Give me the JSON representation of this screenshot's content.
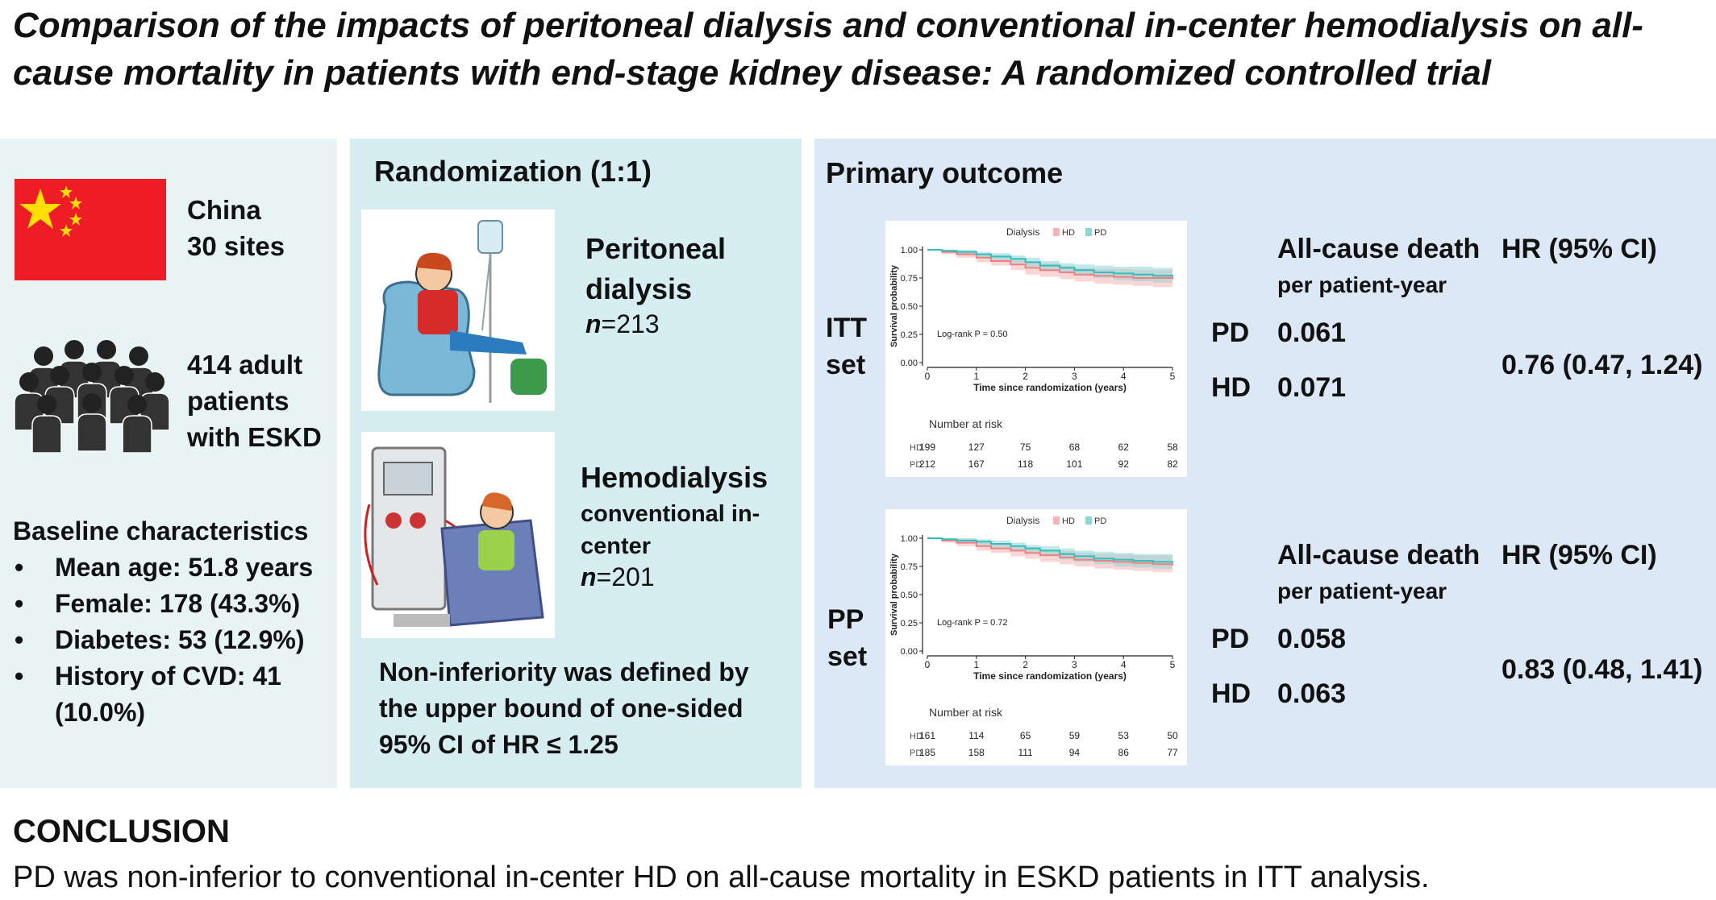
{
  "title": "Comparison of the impacts of peritoneal dialysis and conventional in-center hemodialysis on all-cause mortality in patients with end-stage kidney disease: A randomized controlled trial",
  "population": {
    "flag_icon": "china-flag-icon",
    "country": "China",
    "sites": "30 sites",
    "patients_line1": "414 adult",
    "patients_line2": "patients",
    "patients_line3": "with ESKD",
    "baseline_heading": "Baseline characteristics",
    "baseline_items": [
      "Mean age: 51.8 years",
      "Female: 178 (43.3%)",
      "Diabetes: 53 (12.9%)",
      "History of CVD: 41 (10.0%)"
    ]
  },
  "randomization": {
    "heading": "Randomization (1:1)",
    "pd_line1": "Peritoneal",
    "pd_line2": "dialysis",
    "pd_n_label": "n",
    "pd_n_value": "=213",
    "hd_line1": "Hemodialysis",
    "hd_line2": "conventional in-",
    "hd_line3": "center",
    "hd_n_label": "n",
    "hd_n_value": "=201",
    "noninferiority": "Non-inferiority was defined by the upper bound of one-sided 95% CI of HR ≤ 1.25"
  },
  "primary_outcome": {
    "heading": "Primary outcome",
    "col_death_line1": "All-cause death",
    "col_death_line2": "per patient-year",
    "col_hr": "HR (95% CI)",
    "itt": {
      "label_line1": "ITT",
      "label_line2": "set",
      "pd_label": "PD",
      "pd_rate": "0.061",
      "hd_label": "HD",
      "hd_rate": "0.071",
      "hr": "0.76 (0.47, 1.24)"
    },
    "pp": {
      "label_line1": "PP",
      "label_line2": "set",
      "pd_label": "PD",
      "pd_rate": "0.058",
      "hd_label": "HD",
      "hd_rate": "0.063",
      "hr": "0.83 (0.48, 1.41)"
    }
  },
  "chart_data": [
    {
      "type": "line",
      "title": "",
      "legend_title": "Dialysis",
      "legend_position": "top",
      "xlabel": "Time since randomization (years)",
      "ylabel": "Survival probability",
      "xlim": [
        0,
        5
      ],
      "ylim": [
        0,
        1
      ],
      "x_ticks": [
        "0",
        "1",
        "2",
        "3",
        "4",
        "5"
      ],
      "y_ticks": [
        "0.00",
        "0.25",
        "0.50",
        "0.75",
        "1.00"
      ],
      "annotation": "Log-rank P = 0.50",
      "risk_table_title": "Number at risk",
      "series": [
        {
          "name": "HD",
          "color": "#f08080",
          "band_color": "#f8b4b4",
          "x": [
            0,
            0.3,
            0.6,
            1.0,
            1.3,
            1.7,
            2.0,
            2.3,
            2.7,
            3.0,
            3.4,
            3.8,
            4.2,
            4.6,
            5.0
          ],
          "values": [
            1.0,
            0.98,
            0.96,
            0.93,
            0.9,
            0.87,
            0.84,
            0.82,
            0.8,
            0.78,
            0.77,
            0.76,
            0.75,
            0.75,
            0.74
          ],
          "upper": [
            1.0,
            1.0,
            0.99,
            0.96,
            0.94,
            0.92,
            0.89,
            0.88,
            0.86,
            0.84,
            0.83,
            0.83,
            0.82,
            0.82,
            0.82
          ],
          "lower": [
            1.0,
            0.96,
            0.93,
            0.89,
            0.86,
            0.82,
            0.78,
            0.76,
            0.74,
            0.72,
            0.7,
            0.69,
            0.68,
            0.67,
            0.66
          ],
          "at_risk": [
            "199",
            "127",
            "75",
            "68",
            "62",
            "58"
          ]
        },
        {
          "name": "PD",
          "color": "#33bdbd",
          "band_color": "#8fd6d6",
          "x": [
            0,
            0.3,
            0.6,
            1.0,
            1.3,
            1.7,
            2.0,
            2.3,
            2.7,
            3.0,
            3.4,
            3.8,
            4.2,
            4.6,
            5.0
          ],
          "values": [
            1.0,
            0.99,
            0.98,
            0.96,
            0.94,
            0.92,
            0.89,
            0.86,
            0.84,
            0.82,
            0.8,
            0.79,
            0.78,
            0.77,
            0.76
          ],
          "upper": [
            1.0,
            1.0,
            1.0,
            0.98,
            0.97,
            0.95,
            0.93,
            0.9,
            0.88,
            0.87,
            0.86,
            0.85,
            0.85,
            0.84,
            0.84
          ],
          "lower": [
            1.0,
            0.98,
            0.96,
            0.93,
            0.91,
            0.88,
            0.85,
            0.81,
            0.79,
            0.77,
            0.75,
            0.73,
            0.72,
            0.71,
            0.69
          ],
          "at_risk": [
            "212",
            "167",
            "118",
            "101",
            "92",
            "82"
          ]
        }
      ]
    },
    {
      "type": "line",
      "title": "",
      "legend_title": "Dialysis",
      "legend_position": "top",
      "xlabel": "Time since randomization (years)",
      "ylabel": "Survival probability",
      "xlim": [
        0,
        5
      ],
      "ylim": [
        0,
        1
      ],
      "x_ticks": [
        "0",
        "1",
        "2",
        "3",
        "4",
        "5"
      ],
      "y_ticks": [
        "0.00",
        "0.25",
        "0.50",
        "0.75",
        "1.00"
      ],
      "annotation": "Log-rank P = 0.72",
      "risk_table_title": "Number at risk",
      "series": [
        {
          "name": "HD",
          "color": "#f08080",
          "band_color": "#f8b4b4",
          "x": [
            0,
            0.3,
            0.6,
            1.0,
            1.3,
            1.7,
            2.0,
            2.3,
            2.7,
            3.0,
            3.4,
            3.8,
            4.2,
            4.6,
            5.0
          ],
          "values": [
            1.0,
            0.98,
            0.96,
            0.93,
            0.91,
            0.89,
            0.87,
            0.85,
            0.83,
            0.81,
            0.8,
            0.79,
            0.78,
            0.77,
            0.76
          ],
          "upper": [
            1.0,
            1.0,
            0.99,
            0.97,
            0.95,
            0.93,
            0.92,
            0.9,
            0.89,
            0.87,
            0.86,
            0.86,
            0.85,
            0.85,
            0.84
          ],
          "lower": [
            1.0,
            0.96,
            0.93,
            0.89,
            0.87,
            0.84,
            0.82,
            0.79,
            0.77,
            0.75,
            0.73,
            0.72,
            0.71,
            0.7,
            0.68
          ],
          "at_risk": [
            "161",
            "114",
            "65",
            "59",
            "53",
            "50"
          ]
        },
        {
          "name": "PD",
          "color": "#33bdbd",
          "band_color": "#8fd6d6",
          "x": [
            0,
            0.3,
            0.6,
            1.0,
            1.3,
            1.7,
            2.0,
            2.3,
            2.7,
            3.0,
            3.4,
            3.8,
            4.2,
            4.6,
            5.0
          ],
          "values": [
            1.0,
            0.99,
            0.98,
            0.97,
            0.95,
            0.93,
            0.91,
            0.89,
            0.86,
            0.84,
            0.82,
            0.81,
            0.8,
            0.79,
            0.78
          ],
          "upper": [
            1.0,
            1.0,
            1.0,
            0.99,
            0.98,
            0.96,
            0.94,
            0.93,
            0.91,
            0.89,
            0.88,
            0.87,
            0.86,
            0.86,
            0.86
          ],
          "lower": [
            1.0,
            0.98,
            0.96,
            0.94,
            0.92,
            0.89,
            0.87,
            0.84,
            0.81,
            0.79,
            0.77,
            0.75,
            0.74,
            0.73,
            0.71
          ],
          "at_risk": [
            "185",
            "158",
            "111",
            "94",
            "86",
            "77"
          ]
        }
      ]
    }
  ],
  "conclusion": {
    "heading": "CONCLUSION",
    "text": "PD was non-inferior to conventional in-center HD on all-cause mortality in ESKD patients in ITT analysis."
  }
}
